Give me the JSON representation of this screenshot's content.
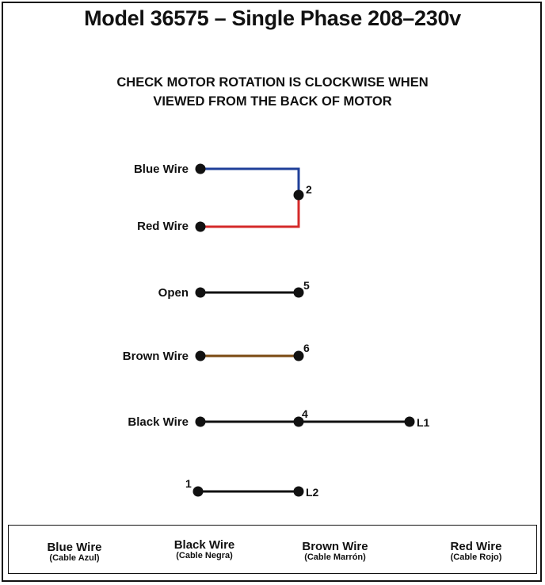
{
  "title": "Model 36575 – Single Phase 208–230v",
  "warning": {
    "line1": "CHECK MOTOR ROTATION IS CLOCKWISE WHEN",
    "line2": "VIEWED FROM THE BACK OF MOTOR"
  },
  "wire_labels": {
    "blue": "Blue Wire",
    "red": "Red Wire",
    "open": "Open",
    "brown": "Brown Wire",
    "black": "Black Wire"
  },
  "terminals": {
    "t2": "2",
    "t5": "5",
    "t6": "6",
    "t4": "4",
    "l1": "L1",
    "t1": "1",
    "l2": "L2"
  },
  "legend": [
    {
      "en": "Blue Wire",
      "es": "(Cable Azul)"
    },
    {
      "en": "Black Wire",
      "es": "(Cable Negra)"
    },
    {
      "en": "Brown Wire",
      "es": "(Cable Marrón)"
    },
    {
      "en": "Red Wire",
      "es": "(Cable Rojo)"
    }
  ],
  "colors": {
    "blue_wire": "#1f3f99",
    "red_wire": "#d42a2a",
    "brown_wire": "#7a4a12",
    "black_wire": "#111111"
  }
}
